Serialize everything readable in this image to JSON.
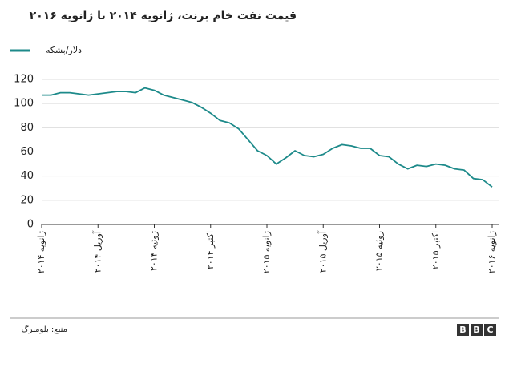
{
  "chart_data": {
    "type": "line",
    "title": "قیمت نفت خام برنت، ژانویه ۲۰۱۴ تا ژانویه ۲۰۱۶",
    "categories": [
      "ژانویه ۲۰۱۴",
      null,
      null,
      null,
      null,
      null,
      "آوریل ۲۰۱۴",
      null,
      null,
      null,
      null,
      null,
      "ژوئیه ۲۰۱۴",
      null,
      null,
      null,
      null,
      null,
      "اکتبر ۲۰۱۴",
      null,
      null,
      null,
      null,
      null,
      "ژانویه ۲۰۱۵",
      null,
      null,
      null,
      null,
      null,
      "آوریل ۲۰۱۵",
      null,
      null,
      null,
      null,
      null,
      "ژوئیه ۲۰۱۵",
      null,
      null,
      null,
      null,
      null,
      "اکتبر ۲۰۱۵",
      null,
      null,
      null,
      null,
      null,
      "ژانویه ۲۰۱۶"
    ],
    "series": [
      {
        "name": "دلار/بشکه",
        "color": "#1d8a8a",
        "values": [
          107,
          107,
          109,
          109,
          108,
          107,
          108,
          109,
          110,
          110,
          109,
          113,
          111,
          107,
          105,
          103,
          101,
          97,
          92,
          86,
          84,
          79,
          70,
          61,
          57,
          50,
          55,
          61,
          57,
          56,
          58,
          63,
          66,
          65,
          63,
          63,
          57,
          56,
          50,
          46,
          49,
          48,
          50,
          49,
          46,
          45,
          38,
          37,
          31
        ]
      }
    ],
    "ylim": [
      0,
      120
    ],
    "yticks": [
      0,
      20,
      40,
      60,
      80,
      100,
      120
    ],
    "grid": true,
    "source": "منبع: بلومبرگ",
    "logo": [
      "B",
      "B",
      "C"
    ]
  }
}
